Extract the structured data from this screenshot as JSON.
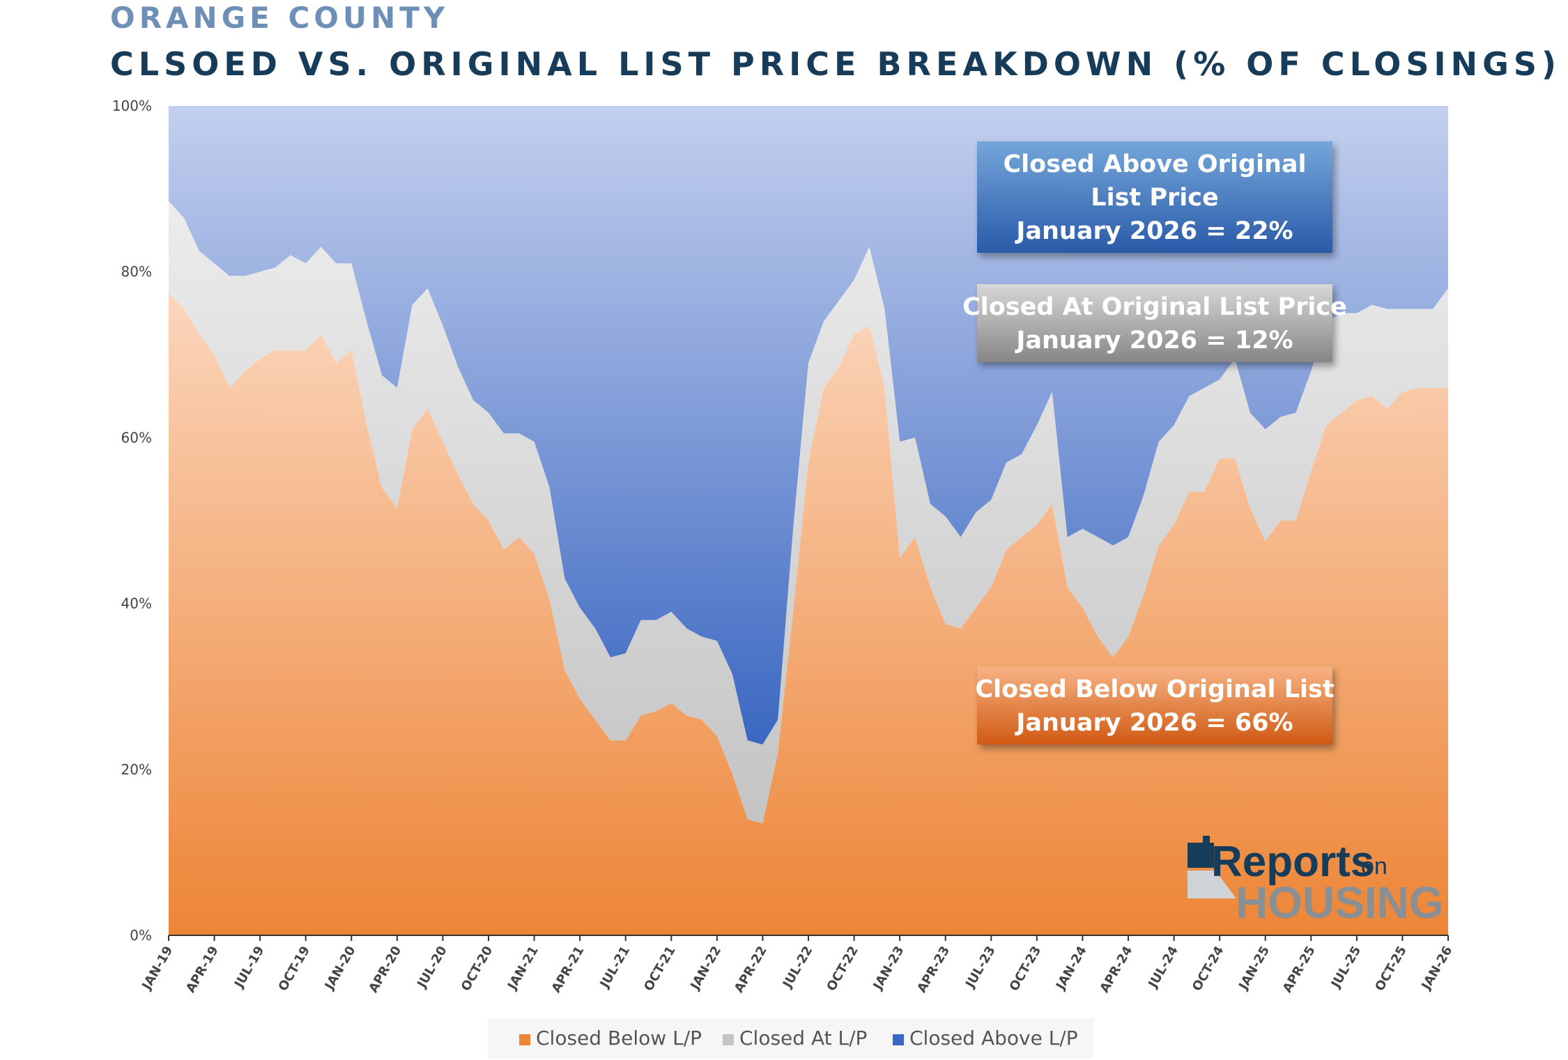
{
  "header": {
    "subtitle": "ORANGE COUNTY",
    "title": "CLSOED VS. ORIGINAL LIST PRICE BREAKDOWN (% OF CLOSINGS)"
  },
  "colors": {
    "below_top": "#fbd6bd",
    "below_bottom": "#ed8536",
    "at_top": "#ececec",
    "at_bottom": "#c4c4c4",
    "above_top": "#c3cfee",
    "above_bottom": "#3a67c1",
    "box_above_top": "#74a6da",
    "box_above_bottom": "#2a5aa8",
    "box_at_top": "#d7d7d7",
    "box_at_bottom": "#868686",
    "box_below_top": "#f7b383",
    "box_below_bottom": "#d05a14"
  },
  "annotations": [
    {
      "id": "above",
      "lines": [
        "Closed Above Original",
        "List Price",
        "January 2026 = 22%"
      ]
    },
    {
      "id": "at",
      "lines": [
        "Closed At Original List Price",
        "January 2026 = 12%"
      ]
    },
    {
      "id": "below",
      "lines": [
        "Closed Below Original List",
        "January 2026 = 66%"
      ]
    }
  ],
  "logo": {
    "main": "Reports",
    "small": "on",
    "second": "HOUSING"
  },
  "chart_data": {
    "type": "area",
    "stacked": true,
    "title": "CLSOED VS. ORIGINAL LIST PRICE BREAKDOWN (% OF CLOSINGS)",
    "ylim": [
      0,
      100
    ],
    "y_ticks": [
      "0%",
      "20%",
      "40%",
      "60%",
      "80%",
      "100%"
    ],
    "x_ticks": [
      "JAN-19",
      "APR-19",
      "JUL-19",
      "OCT-19",
      "JAN-20",
      "APR-20",
      "JUL-20",
      "OCT-20",
      "JAN-21",
      "APR-21",
      "JUL-21",
      "OCT-21",
      "JAN-22",
      "APR-22",
      "JUL-22",
      "OCT-22",
      "JAN-23",
      "APR-23",
      "JUL-23",
      "OCT-23",
      "JAN-24",
      "APR-24",
      "JUL-24",
      "OCT-24",
      "JAN-25",
      "APR-25",
      "JUL-25",
      "OCT-25",
      "JAN-26"
    ],
    "x_count": 85,
    "legend": [
      "Closed Below L/P",
      "Closed At L/P",
      "Closed Above L/P"
    ],
    "series": [
      {
        "name": "Closed Below L/P",
        "values": [
          77.5,
          75.5,
          72.5,
          70,
          66,
          68,
          69.5,
          70.5,
          70.5,
          70.5,
          72.5,
          69,
          70.5,
          61.5,
          54,
          51.5,
          61,
          63.5,
          59.5,
          55.5,
          52,
          50,
          46.5,
          48,
          46,
          40.5,
          32,
          28.5,
          26,
          23.5,
          23.5,
          26.5,
          27,
          28,
          26.5,
          26,
          24,
          19.5,
          14,
          13.5,
          22,
          39,
          57,
          66,
          68.5,
          72.5,
          73.5,
          66,
          45.5,
          48,
          42,
          37.5,
          37,
          39.5,
          42,
          46.5,
          48,
          49.5,
          52,
          42,
          39.5,
          36,
          33.5,
          36,
          41,
          47,
          49.5,
          53.5,
          53.5,
          57.5,
          57.5,
          51.5,
          47.5,
          50,
          50,
          56,
          61.5,
          63,
          64.5,
          65,
          63.5,
          65.5,
          66,
          66,
          66
        ]
      },
      {
        "name": "Closed At L/P",
        "values": [
          11,
          11,
          10,
          11,
          13.5,
          11.5,
          10.5,
          10,
          11.5,
          10.5,
          10.5,
          12,
          10.5,
          12.5,
          13.5,
          14.5,
          15,
          14.5,
          14,
          13,
          12.5,
          13,
          14,
          12.5,
          13.5,
          13.5,
          11,
          11,
          11,
          10,
          10.5,
          11.5,
          11,
          11,
          10.5,
          10,
          11.5,
          12,
          9.5,
          9.5,
          4,
          10,
          12,
          8,
          8,
          6.5,
          9.5,
          9.5,
          14,
          12,
          10,
          13,
          11,
          11.5,
          10.5,
          10.5,
          10,
          12,
          13.5,
          6,
          9.5,
          12,
          13.5,
          12,
          12,
          12.5,
          12,
          11.5,
          12.5,
          9.5,
          12,
          11.5,
          13.5,
          12.5,
          13,
          12,
          12.5,
          12,
          10.5,
          11,
          12,
          10,
          9.5,
          9.5,
          12
        ]
      },
      {
        "name": "Closed Above L/P",
        "values": [
          11.5,
          13.5,
          17.5,
          19,
          20.5,
          20.5,
          20,
          19.5,
          18,
          19,
          17,
          19,
          19,
          26,
          32.5,
          34,
          24,
          22,
          26.5,
          31.5,
          35.5,
          37,
          39.5,
          39.5,
          40.5,
          46,
          57,
          60.5,
          63,
          66.5,
          66,
          62,
          62,
          61,
          63,
          64,
          64.5,
          68.5,
          76.5,
          77,
          74,
          51,
          31,
          26,
          23.5,
          21,
          17,
          24.5,
          40.5,
          40,
          48,
          49.5,
          52,
          49,
          47.5,
          43,
          42,
          38.5,
          34.5,
          52,
          51,
          52,
          53,
          52,
          47,
          40.5,
          38.5,
          35,
          34,
          33,
          30.5,
          37,
          39,
          37.5,
          37,
          32,
          26,
          25,
          25,
          24,
          24.5,
          24.5,
          24.5,
          24.5,
          22
        ]
      }
    ]
  }
}
